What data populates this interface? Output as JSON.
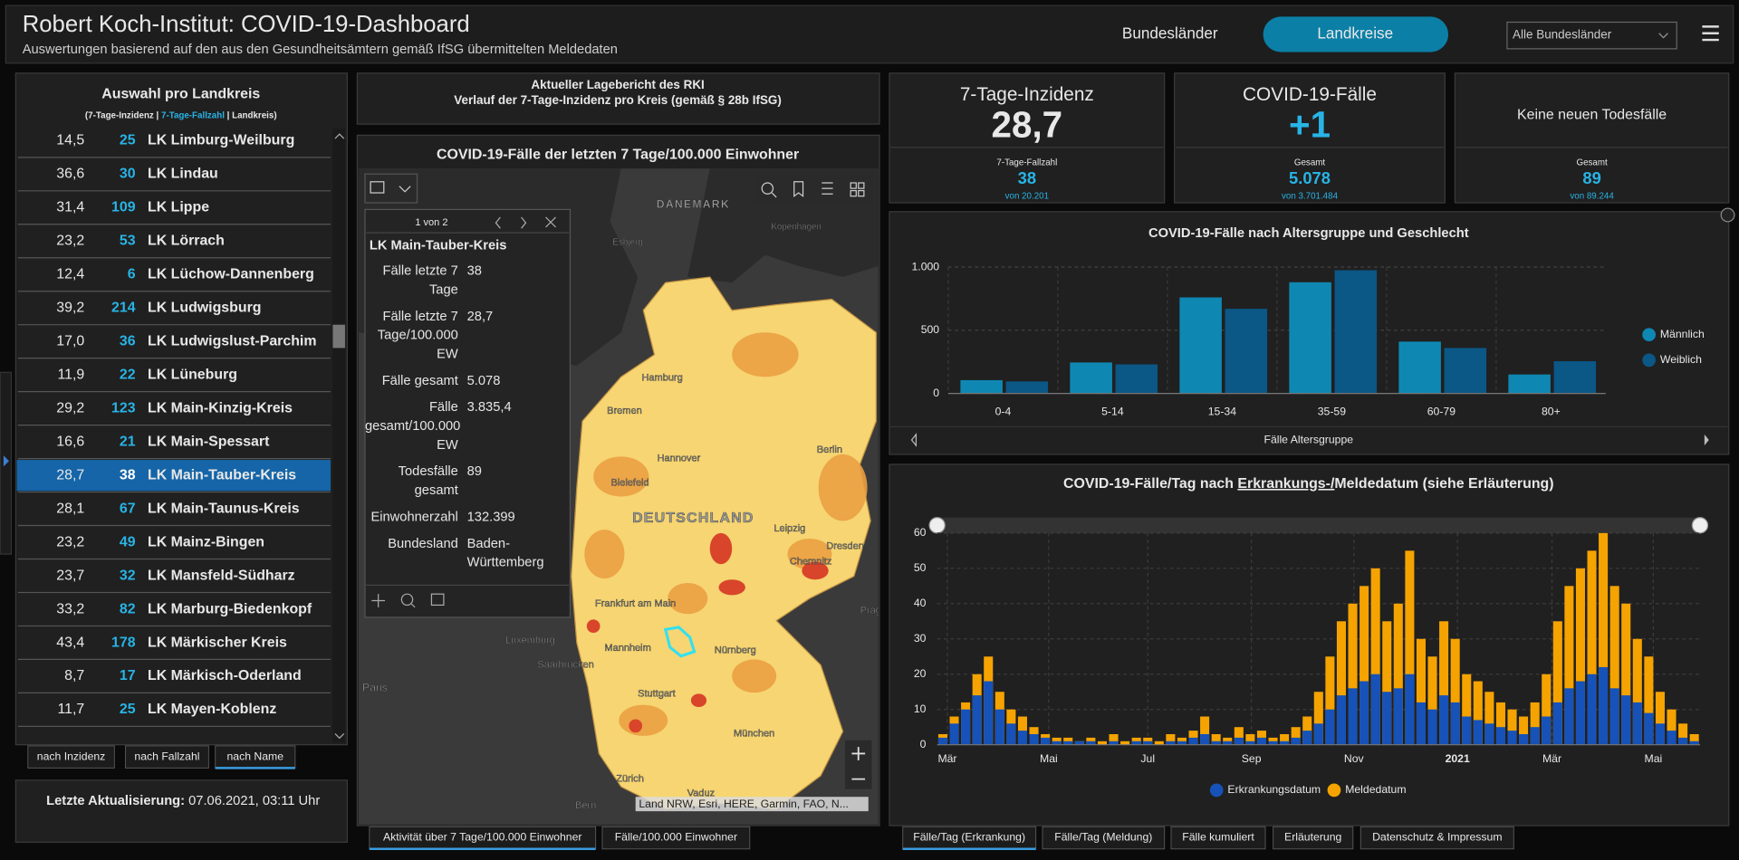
{
  "header": {
    "title": "Robert Koch-Institut: COVID-19-Dashboard",
    "subtitle": "Auswertungen basierend auf den aus den Gesundheitsämtern gemäß IfSG übermittelten Meldedaten",
    "nav": [
      "Bundesländer",
      "Landkreise"
    ],
    "select": "Alle Bundesländer"
  },
  "list": {
    "title": "Auswahl pro Landkreis",
    "legend": [
      "(7-Tage-Inzidenz | ",
      "7-Tage-Fallzahl",
      " | Landkreis)"
    ],
    "selected": 10,
    "rows": [
      [
        "14,5",
        "25",
        "LK Limburg-Weilburg"
      ],
      [
        "36,6",
        "30",
        "LK Lindau"
      ],
      [
        "31,4",
        "109",
        "LK Lippe"
      ],
      [
        "23,2",
        "53",
        "LK Lörrach"
      ],
      [
        "12,4",
        "6",
        "LK Lüchow-Dannenberg"
      ],
      [
        "39,2",
        "214",
        "LK Ludwigsburg"
      ],
      [
        "17,0",
        "36",
        "LK Ludwigslust-Parchim"
      ],
      [
        "11,9",
        "22",
        "LK Lüneburg"
      ],
      [
        "29,2",
        "123",
        "LK Main-Kinzig-Kreis"
      ],
      [
        "16,6",
        "21",
        "LK Main-Spessart"
      ],
      [
        "28,7",
        "38",
        "LK Main-Tauber-Kreis"
      ],
      [
        "28,1",
        "67",
        "LK Main-Taunus-Kreis"
      ],
      [
        "23,2",
        "49",
        "LK Mainz-Bingen"
      ],
      [
        "23,7",
        "32",
        "LK Mansfeld-Südharz"
      ],
      [
        "33,2",
        "82",
        "LK Marburg-Biedenkopf"
      ],
      [
        "43,4",
        "178",
        "LK Märkischer Kreis"
      ],
      [
        "8,7",
        "17",
        "LK Märkisch-Oderland"
      ],
      [
        "11,7",
        "25",
        "LK Mayen-Koblenz"
      ]
    ]
  },
  "sort_buttons": [
    "nach Inzidenz",
    "nach Fallzahl",
    "nach Name"
  ],
  "update": {
    "label": "Letzte Aktualisierung:",
    "value": "07.06.2021, 03:11 Uhr"
  },
  "report": [
    "Aktueller Lagebericht des RKI",
    "Verlauf der 7-Tage-Inzidenz pro Kreis (gemäß § 28b IfSG)"
  ],
  "map": {
    "title": "COVID-19-Fälle der letzten 7 Tage/100.000 Einwohner",
    "labels": [
      "DÄNEMARK",
      "Esbjerg",
      "Kopenhagen",
      "Hamburg",
      "Bremen",
      "Hannover",
      "Berlin",
      "Bielefeld",
      "DEUTSCHLAND",
      "Leipzig",
      "Dresden",
      "Chemnitz",
      "Frankfurt am Main",
      "Luxemburg",
      "Mannheim",
      "Saarbrücken",
      "Nürnberg",
      "Stuttgart",
      "München",
      "Zürich",
      "Vaduz",
      "Paris",
      "Bern",
      "Prag"
    ],
    "attribution": "Land NRW, Esri, HERE, Garmin, FAO, N...",
    "popup": {
      "pager": "1 von 2",
      "title": "LK Main-Tauber-Kreis",
      "fields": [
        [
          "Fälle letzte 7 Tage",
          "38"
        ],
        [
          "Fälle letzte 7 Tage/100.000 EW",
          "28,7"
        ],
        [
          "Fälle gesamt",
          "5.078"
        ],
        [
          "Fälle gesamt/100.000 EW",
          "3.835,4"
        ],
        [
          "Todesfälle gesamt",
          "89"
        ],
        [
          "Einwohnerzahl",
          "132.399"
        ],
        [
          "Bundesland",
          "Baden-Württemberg"
        ]
      ]
    },
    "tabs": [
      "Aktivität über 7 Tage/100.000 Einwohner",
      "Fälle/100.000 Einwohner"
    ]
  },
  "cards": [
    {
      "title": "7-Tage-Inzidenz",
      "value": "28,7",
      "sub_label": "7-Tage-Fallzahl",
      "sub_value": "38",
      "sub_note": "von 20.201"
    },
    {
      "title": "COVID-19-Fälle",
      "value": "+1",
      "sub_label": "Gesamt",
      "sub_value": "5.078",
      "sub_note": "von 3.701.484"
    },
    {
      "title": "Keine neuen Todesfälle",
      "sub_label": "Gesamt",
      "sub_value": "89",
      "sub_note": "von 89.244"
    }
  ],
  "age_chart": {
    "type": "bar",
    "title": "COVID-19-Fälle nach Altersgruppe und Geschlecht",
    "x_label": "Fälle Altersgruppe",
    "categories": [
      "0-4",
      "5-14",
      "15-34",
      "35-59",
      "60-79",
      "80+"
    ],
    "series": [
      {
        "name": "Männlich",
        "color": "#0e88b2",
        "values": [
          105,
          245,
          760,
          880,
          410,
          150
        ]
      },
      {
        "name": "Weiblich",
        "color": "#0b5785",
        "values": [
          95,
          230,
          670,
          975,
          360,
          255
        ]
      }
    ],
    "ylim": [
      0,
      1000
    ],
    "yticks": [
      0,
      500,
      {
        "value": 1000,
        "label": "1.000"
      }
    ],
    "grid": true
  },
  "daily_chart": {
    "type": "bar",
    "title_parts": [
      "COVID-19-Fälle/Tag nach ",
      "Erkrankungs-/",
      "Meldedatum (siehe Erläuterung)"
    ],
    "series": [
      {
        "name": "Erkrankungsdatum",
        "color": "#1652b8",
        "values": [
          2,
          6,
          10,
          14,
          18,
          10,
          6,
          4,
          3,
          2,
          1,
          1,
          1,
          1,
          0,
          1,
          0,
          1,
          1,
          0,
          1,
          1,
          2,
          3,
          1,
          1,
          2,
          1,
          2,
          1,
          1,
          2,
          4,
          6,
          10,
          14,
          16,
          18,
          20,
          15,
          16,
          20,
          12,
          10,
          14,
          12,
          8,
          7,
          6,
          5,
          4,
          3,
          5,
          8,
          12,
          16,
          18,
          20,
          22,
          16,
          14,
          12,
          9,
          6,
          4,
          2,
          1
        ]
      },
      {
        "name": "Meldedatum",
        "color": "#f5a300",
        "values": [
          3,
          8,
          12,
          20,
          25,
          15,
          10,
          8,
          5,
          3,
          2,
          2,
          1,
          2,
          1,
          3,
          1,
          2,
          2,
          1,
          3,
          2,
          4,
          8,
          3,
          2,
          5,
          3,
          4,
          2,
          3,
          5,
          8,
          15,
          25,
          35,
          40,
          45,
          50,
          35,
          40,
          55,
          30,
          25,
          35,
          30,
          20,
          18,
          15,
          12,
          10,
          8,
          12,
          20,
          35,
          45,
          50,
          55,
          60,
          45,
          40,
          30,
          25,
          15,
          10,
          6,
          3
        ]
      }
    ],
    "xlim": [
      -0.5,
      66.5
    ],
    "xticks": [
      {
        "value": 0.4,
        "label": "Mär"
      },
      {
        "value": 9.3,
        "label": "Mai"
      },
      {
        "value": 18,
        "label": "Jul"
      },
      {
        "value": 27.1,
        "label": "Sep"
      },
      {
        "value": 36.1,
        "label": "Nov"
      },
      {
        "value": 45.2,
        "label": "2021"
      },
      {
        "value": 53.5,
        "label": "Mär"
      },
      {
        "value": 62.4,
        "label": "Mai"
      }
    ],
    "ylim": [
      0,
      60
    ],
    "yticks": [
      0,
      10,
      20,
      30,
      40,
      50,
      60
    ],
    "grid": true
  },
  "bottom_tabs": [
    "Fälle/Tag (Erkrankung)",
    "Fälle/Tag (Meldung)",
    "Fälle kumuliert",
    "Erläuterung",
    "Datenschutz & Impressum"
  ]
}
